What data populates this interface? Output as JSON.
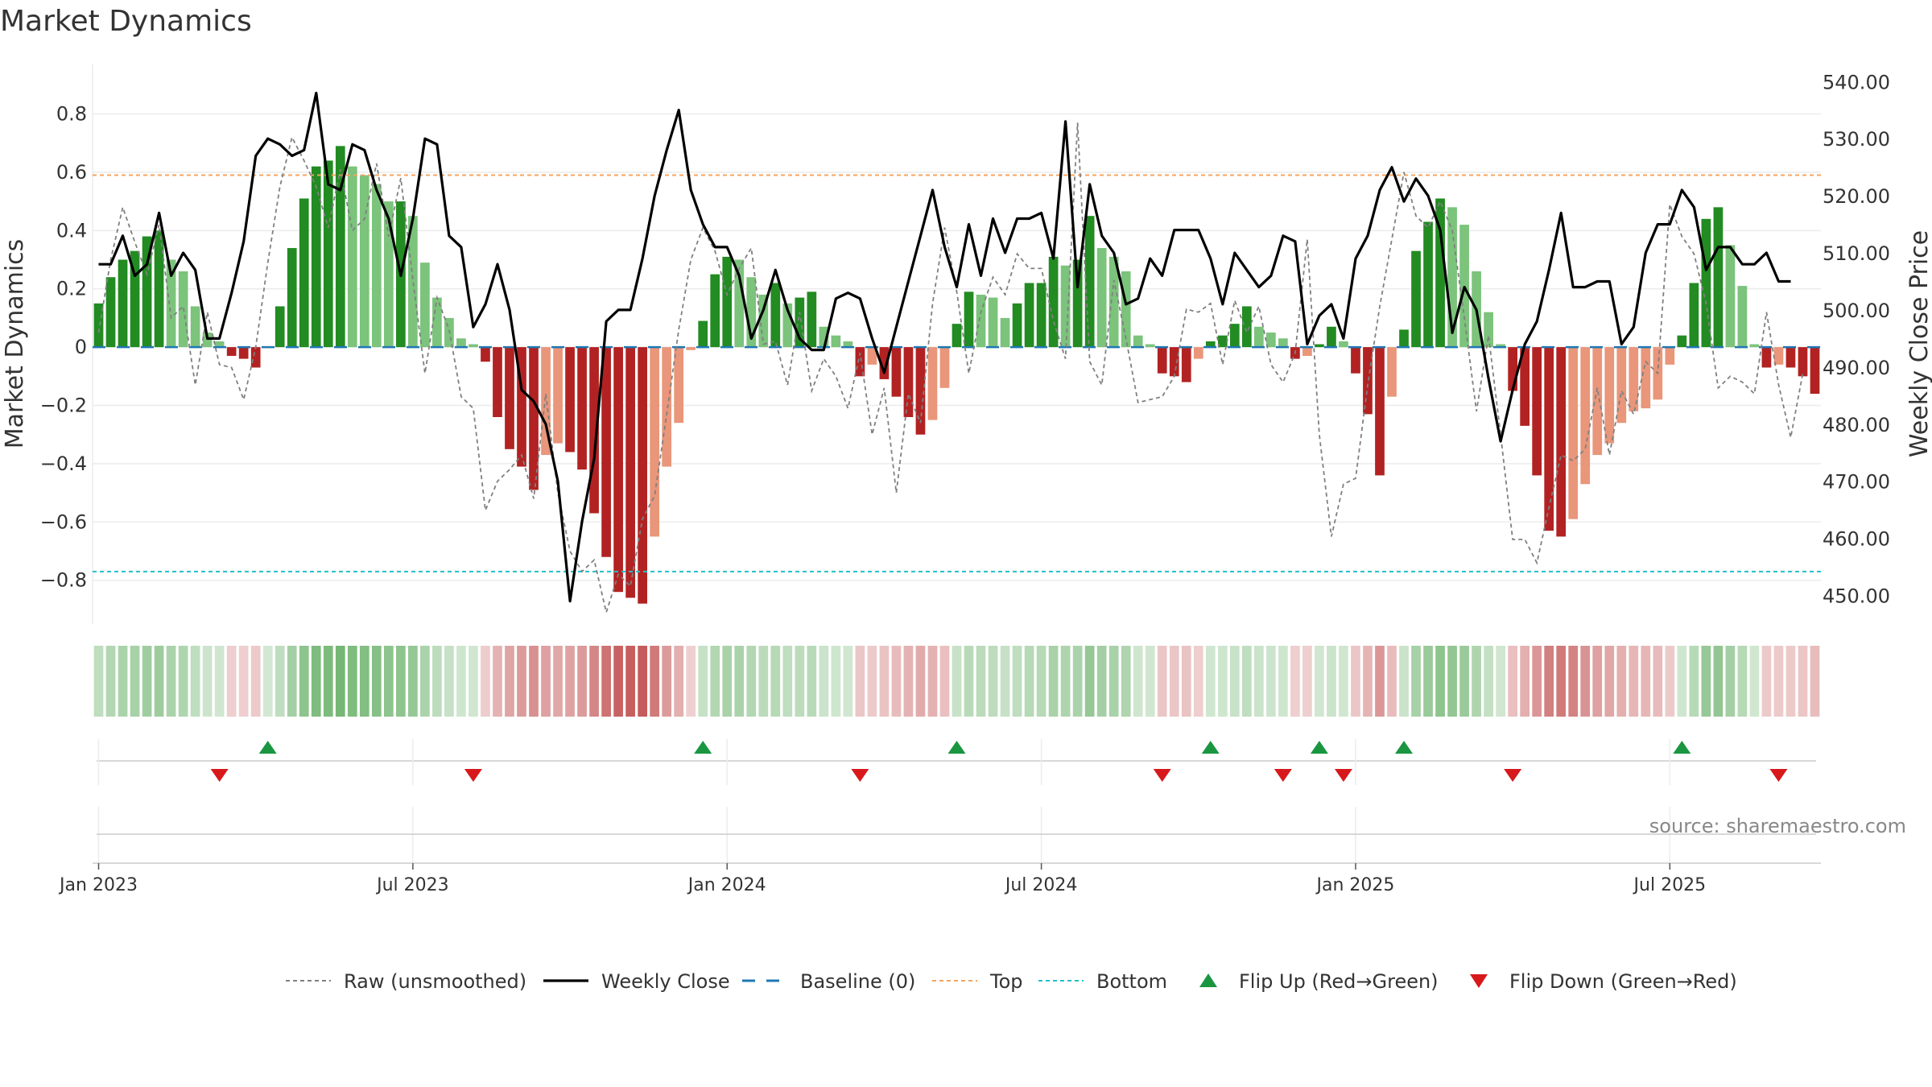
{
  "chart_data": {
    "type": "bar",
    "title": "Market Dynamics",
    "ylabel_left": "Market Dynamics",
    "ylabel_right": "Weekly Close Price",
    "source": "source: sharemaestro.com",
    "left_ylim": [
      -0.95,
      0.97
    ],
    "right_ylim": [
      445,
      543
    ],
    "left_ticks": [
      -0.8,
      -0.6,
      -0.4,
      -0.2,
      0,
      0.2,
      0.4,
      0.6,
      0.8
    ],
    "left_tick_labels": [
      "−0.8",
      "−0.6",
      "−0.4",
      "−0.2",
      "0",
      "0.2",
      "0.4",
      "0.6",
      "0.8"
    ],
    "right_ticks": [
      450,
      460,
      470,
      480,
      490,
      500,
      510,
      520,
      530,
      540
    ],
    "right_tick_labels": [
      "450.00",
      "460.00",
      "470.00",
      "480.00",
      "490.00",
      "500.00",
      "510.00",
      "520.00",
      "530.00",
      "540.00"
    ],
    "x_ticks": [
      {
        "week": 1,
        "label": "Jan 2023"
      },
      {
        "week": 27,
        "label": "Jul 2023"
      },
      {
        "week": 53,
        "label": "Jan 2024"
      },
      {
        "week": 79,
        "label": "Jul 2024"
      },
      {
        "week": 105,
        "label": "Jan 2025"
      },
      {
        "week": 131,
        "label": "Jul 2025"
      }
    ],
    "top_level": 0.59,
    "bottom_level": -0.77,
    "baseline": 0,
    "smoothed": [
      0.15,
      0.24,
      0.3,
      0.33,
      0.38,
      0.4,
      0.3,
      0.26,
      0.14,
      0.05,
      0.02,
      -0.03,
      -0.04,
      -0.07,
      0,
      0.14,
      0.34,
      0.51,
      0.62,
      0.64,
      0.69,
      0.62,
      0.59,
      0.56,
      0.5,
      0.5,
      0.45,
      0.29,
      0.17,
      0.1,
      0.03,
      0.01,
      -0.05,
      -0.24,
      -0.35,
      -0.41,
      -0.49,
      -0.37,
      -0.33,
      -0.36,
      -0.42,
      -0.57,
      -0.72,
      -0.84,
      -0.86,
      -0.88,
      -0.65,
      -0.41,
      -0.26,
      -0.01,
      0.09,
      0.25,
      0.31,
      0.3,
      0.24,
      0.18,
      0.22,
      0.15,
      0.17,
      0.19,
      0.07,
      0.04,
      0.02,
      -0.1,
      -0.06,
      -0.11,
      -0.17,
      -0.24,
      -0.3,
      -0.25,
      -0.14,
      0.08,
      0.19,
      0.18,
      0.17,
      0.1,
      0.15,
      0.22,
      0.22,
      0.31,
      0.28,
      0.3,
      0.45,
      0.34,
      0.31,
      0.26,
      0.04,
      0.01,
      -0.09,
      -0.1,
      -0.12,
      -0.04,
      0.02,
      0.04,
      0.08,
      0.14,
      0.07,
      0.05,
      0.03,
      -0.04,
      -0.03,
      0.01,
      0.07,
      0.02,
      -0.09,
      -0.23,
      -0.44,
      -0.17,
      0.06,
      0.33,
      0.43,
      0.51,
      0.48,
      0.42,
      0.26,
      0.12,
      0.01,
      -0.15,
      -0.27,
      -0.44,
      -0.63,
      -0.65,
      -0.59,
      -0.47,
      -0.37,
      -0.33,
      -0.26,
      -0.22,
      -0.21,
      -0.18,
      -0.06,
      0.04,
      0.22,
      0.44,
      0.48,
      0.35,
      0.21,
      0.01,
      -0.07,
      -0.06,
      -0.07,
      -0.1,
      -0.16
    ],
    "raw": [
      0.05,
      0.3,
      0.48,
      0.36,
      0.25,
      0.42,
      0.1,
      0.14,
      -0.13,
      0.12,
      -0.06,
      -0.07,
      -0.18,
      0,
      0.29,
      0.55,
      0.72,
      0.64,
      0.55,
      0.41,
      0.61,
      0.4,
      0.44,
      0.63,
      0.38,
      0.58,
      0.23,
      -0.09,
      0.17,
      0.06,
      -0.17,
      -0.21,
      -0.56,
      -0.46,
      -0.42,
      -0.37,
      -0.52,
      -0.16,
      -0.5,
      -0.7,
      -0.77,
      -0.73,
      -0.91,
      -0.78,
      -0.82,
      -0.59,
      -0.51,
      -0.23,
      0.06,
      0.3,
      0.41,
      0.33,
      0.18,
      0.27,
      0.34,
      0.01,
      0.02,
      -0.13,
      0.12,
      -0.15,
      -0.04,
      -0.1,
      -0.21,
      -0.02,
      -0.3,
      -0.14,
      -0.5,
      -0.16,
      -0.26,
      0.15,
      0.41,
      0.19,
      -0.09,
      0.12,
      0.24,
      0.18,
      0.32,
      0.27,
      0.27,
      0.09,
      -0.04,
      0.77,
      -0.05,
      -0.13,
      0.23,
      0.03,
      -0.19,
      -0.18,
      -0.17,
      -0.1,
      0.13,
      0.12,
      0.15,
      -0.06,
      0.16,
      0.05,
      0.14,
      -0.06,
      -0.12,
      -0.02,
      0.37,
      -0.3,
      -0.65,
      -0.47,
      -0.45,
      -0.13,
      0.14,
      0.37,
      0.6,
      0.45,
      0.41,
      0.5,
      0.4,
      0.1,
      -0.22,
      0.04,
      -0.3,
      -0.66,
      -0.66,
      -0.74,
      -0.55,
      -0.37,
      -0.39,
      -0.35,
      -0.14,
      -0.37,
      -0.15,
      -0.23,
      -0.05,
      -0.09,
      0.49,
      0.38,
      0.32,
      0.15,
      -0.14,
      -0.1,
      -0.12,
      -0.16,
      0.12,
      -0.13,
      -0.31,
      -0.09
    ],
    "weekly_close": [
      508,
      508,
      513,
      506,
      508,
      517,
      506,
      510,
      507,
      495,
      495,
      503,
      512,
      527,
      530,
      529,
      527,
      528,
      538,
      522,
      521,
      529,
      528,
      521,
      516,
      506,
      516,
      530,
      529,
      513,
      511,
      497,
      501,
      508,
      500,
      486,
      484,
      480,
      470,
      449,
      463,
      474,
      498,
      500,
      500,
      509,
      520,
      528,
      535,
      521,
      515,
      511,
      511,
      506,
      495,
      500,
      507,
      500,
      495,
      493,
      493,
      502,
      503,
      502,
      495,
      489,
      497,
      505,
      513,
      521,
      511,
      504,
      515,
      506,
      516,
      510,
      516,
      516,
      517,
      509,
      533,
      504,
      522,
      513,
      510,
      501,
      502,
      509,
      506,
      514,
      514,
      514,
      509,
      501,
      510,
      507,
      504,
      506,
      513,
      512,
      494,
      499,
      501,
      495,
      509,
      513,
      521,
      525,
      519,
      523,
      520,
      514,
      496,
      504,
      500,
      488,
      477,
      486,
      494,
      498,
      507,
      517,
      504,
      504,
      505,
      505,
      494,
      497,
      510,
      515,
      515,
      521,
      518,
      507,
      511,
      511,
      508,
      508,
      510,
      505,
      505
    ],
    "flip_up_weeks": [
      15,
      51,
      72,
      93,
      102,
      109,
      132
    ],
    "flip_down_weeks": [
      11,
      32,
      64,
      89,
      99,
      104,
      118,
      140
    ],
    "legend": [
      {
        "key": "raw",
        "label": "Raw (unsmoothed)"
      },
      {
        "key": "close",
        "label": "Weekly Close"
      },
      {
        "key": "baseline",
        "label": "Baseline (0)"
      },
      {
        "key": "top",
        "label": "Top"
      },
      {
        "key": "bottom",
        "label": "Bottom"
      },
      {
        "key": "flip_up",
        "label": "Flip Up (Red→Green)"
      },
      {
        "key": "flip_down",
        "label": "Flip Down (Green→Red)"
      }
    ]
  },
  "colors": {
    "green_dark": "#228b22",
    "green_light": "#7cc37c",
    "red_dark": "#b22222",
    "red_light": "#e9967a",
    "close": "#000000",
    "raw": "#808080",
    "baseline": "#1f77b4",
    "top": "#f4a460",
    "bottom": "#20c0c8",
    "flip_up": "#1a9641",
    "flip_down": "#d7191c"
  }
}
